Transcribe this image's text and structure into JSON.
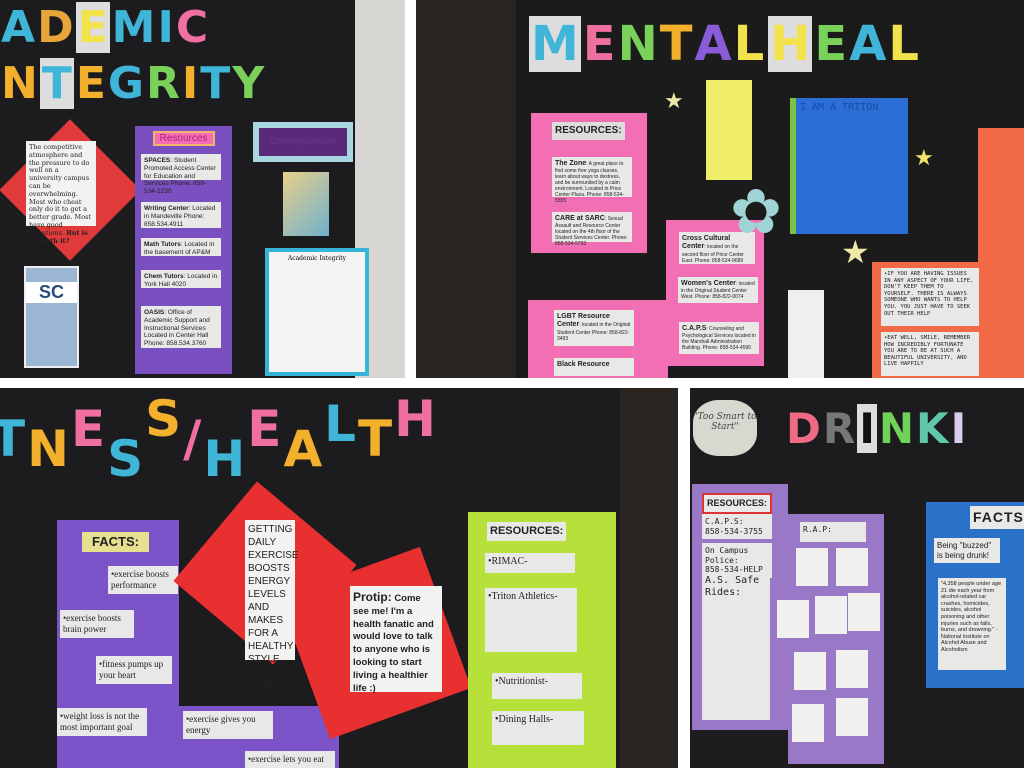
{
  "academic": {
    "title1": [
      "A",
      "D",
      "E",
      "M",
      "I",
      "C"
    ],
    "title2": [
      "N",
      "T",
      "E",
      "G",
      "R",
      "I",
      "T",
      "Y"
    ],
    "title_colors1": [
      "#3fb6d8",
      "#e8a63a",
      "#f2e34c",
      "#3fb6d8",
      "#3fb6d8",
      "#ef6fa0"
    ],
    "title_colors2": [
      "#f2b02c",
      "#3fb6d8",
      "#f2b02c",
      "#3fb6d8",
      "#7ad15a",
      "#f2b02c",
      "#3fb6d8",
      "#7ad15a"
    ],
    "quote": "The competitive atmosphere and the pressure to do well on a university campus can be overwhelming. Most who cheat only do it to get a better grade. Most have good intentions.",
    "quote_bold": "But is it worth it?",
    "resources_header": "Resources",
    "resources": [
      {
        "name": "SPACES",
        "text": ": Student Promoted Access Center for Education and Services Phone: 858-534-2230"
      },
      {
        "name": "Writing Center",
        "text": ": Located in Mandeville Phone: 858.534.4911"
      },
      {
        "name": "Math Tutors",
        "text": ": Located in the basement of AP&M"
      },
      {
        "name": "Chem Tutors",
        "text": ": Located in York Hall 4020"
      },
      {
        "name": "OASIS",
        "text": ": Office of Academic Support and Instructional Services Located in Center Hall Phone: 858.534.3760"
      }
    ],
    "consequences": "Consequences",
    "flyer_logo": "SC",
    "handout_title": "Academic Integrity"
  },
  "mental": {
    "title": [
      "M",
      "E",
      "N",
      "T",
      "A",
      "L",
      " ",
      "H",
      "E",
      "A",
      "L"
    ],
    "title_colors": [
      "#3fb6d8",
      "#ef6fa0",
      "#7ad15a",
      "#f2b02c",
      "#8a5bd6",
      "#f2e34c",
      "",
      "#f2e34c",
      "#7ad15a",
      "#3fb6d8",
      "#f2e34c"
    ],
    "resources_header": "RESOURCES:",
    "resources": [
      {
        "name": "The Zone",
        "text": ": A great place to find some free yoga classes, learn about ways to destress, and be surrounded by a calm environment. Located in Price Center Plaza. Phone: 858-534-5555"
      },
      {
        "name": "CARE at SARC",
        "text": ": Sexual Assault and Resource Center located on the 4th floor of the Student Services Center. Phone: 858-534-5793"
      },
      {
        "name": "Cross Cultural Center",
        "text": ": located on the second floor of Price Center East. Phone: 858-534-9689"
      },
      {
        "name": "Women's Center",
        "text": ": located in the Original Student Center West. Phone: 858-822-0074"
      },
      {
        "name": "C.A.P.S",
        "text": ": Counseling and Psychological Services located in the Marshall Administration Building. Phone: 858-534-4590"
      },
      {
        "name": "LGBT Resource Center",
        "text": ": located in the Original Student Center Phone: 858-822-3493"
      },
      {
        "name": "Black Resource",
        "text": ""
      }
    ],
    "triton_title": "I AM A TRITON",
    "tips": [
      "•IF YOU ARE HAVING ISSUES IN ANY ASPECT OF YOUR LIFE, DON'T KEEP THEM TO YOURSELF. THERE IS ALWAYS SOMEONE WHO WANTS TO HELP YOU. YOU JUST HAVE TO SEEK OUT THEIR HELP",
      "•EAT WELL, SMILE, REMEMBER HOW INCREDIBLY FORTUNATE YOU ARE TO BE AT SUCH A BEAUTIFUL UNIVERSITY, AND LIVE HAPPILY"
    ]
  },
  "fitness": {
    "title": [
      "T",
      "N",
      "E",
      "S",
      "S",
      "/",
      "H",
      "E",
      "A",
      "L",
      "T",
      "H"
    ],
    "title_colors": [
      "#3fb6d8",
      "#f2b02c",
      "#ef6fa0",
      "#3fb6d8",
      "#f2b02c",
      "#ef6fa0",
      "#3fb6d8",
      "#ef6fa0",
      "#f2b02c",
      "#3fb6d8",
      "#f2b02c",
      "#ef6fa0"
    ],
    "facts_header": "FACTS:",
    "facts": [
      "•exercise boosts performance",
      "•exercise boosts brain power",
      "•fitness pumps up your heart",
      "•weight loss is not the most important goal",
      "•exercise gives you energy",
      "•exercise lets you eat"
    ],
    "energy": "GETTING DAILY EXERCISE BOOSTS ENERGY LEVELS AND MAKES FOR A HEALTHY STYLE OF LIVING!",
    "protip_label": "Protip:",
    "protip": "Come see me! I'm a health fanatic and would love to talk to anyone who is looking to start living a healthier life :)",
    "resources_header": "RESOURCES:",
    "resources": [
      "•RIMAC-",
      "•Triton Athletics-",
      "•Nutritionist-",
      "•Dining Halls-"
    ]
  },
  "drinking": {
    "bubble": "\"Too Smart to Start\"",
    "title": [
      "D",
      "R",
      "I",
      "N",
      "K",
      "I"
    ],
    "title_colors": [
      "#f06a86",
      "#777777",
      "#111111",
      "#6fd35a",
      "#5fc7a8",
      "#d9cde8"
    ],
    "resources_header": "RESOURCES:",
    "caps": "C.A.P.S:",
    "caps_phone": "858-534-3755",
    "police": "On Campus Police:",
    "police_phone": "858-534-HELP",
    "safe_rides": "A.S. Safe Rides:",
    "rap": "R.A.P:",
    "facts_header": "FACTS",
    "buzzed": "Being \"buzzed\" is being drunk!",
    "stat": "\"4,358 people under age 21 die each year from alcohol-related car crashes, homicides, suicides, alcohol poisoning and other injuries such as falls, burns, and drowning.\" -National Institute on Alcohol Abuse and Alcoholism"
  }
}
